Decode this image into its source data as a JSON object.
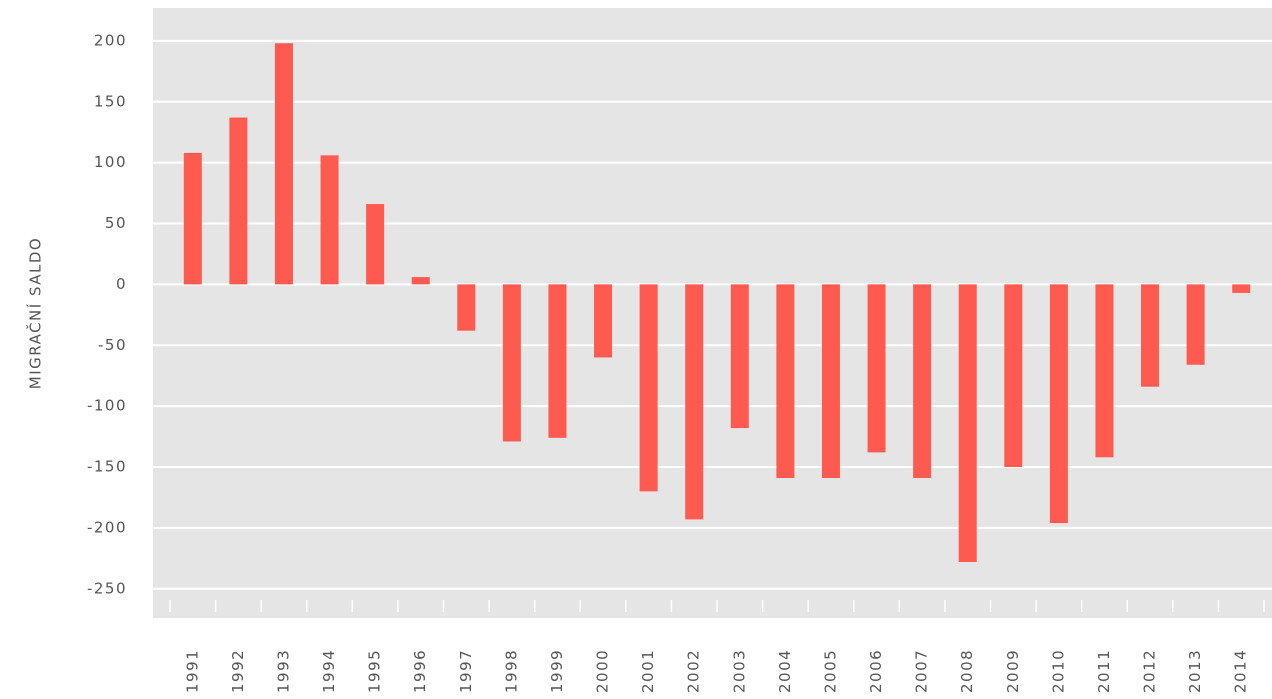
{
  "chart_data": {
    "type": "bar",
    "y_label": "MIGRAČNÍ SALDO",
    "categories": [
      "1991",
      "1992",
      "1993",
      "1994",
      "1995",
      "1996",
      "1997",
      "1998",
      "1999",
      "2000",
      "2001",
      "2002",
      "2003",
      "2004",
      "2005",
      "2006",
      "2007",
      "2008",
      "2009",
      "2010",
      "2011",
      "2012",
      "2013",
      "2014"
    ],
    "values": [
      108,
      137,
      198,
      106,
      66,
      6,
      -38,
      -129,
      -126,
      -60,
      -170,
      -193,
      -118,
      -159,
      -159,
      -138,
      -159,
      -228,
      -150,
      -196,
      -142,
      -84,
      -66,
      -7
    ],
    "color": "#ff5a4f",
    "ylim": [
      -274,
      227
    ],
    "yticks": [
      -250,
      -200,
      -150,
      -100,
      -50,
      0,
      50,
      100,
      150,
      200
    ],
    "grid": true
  }
}
